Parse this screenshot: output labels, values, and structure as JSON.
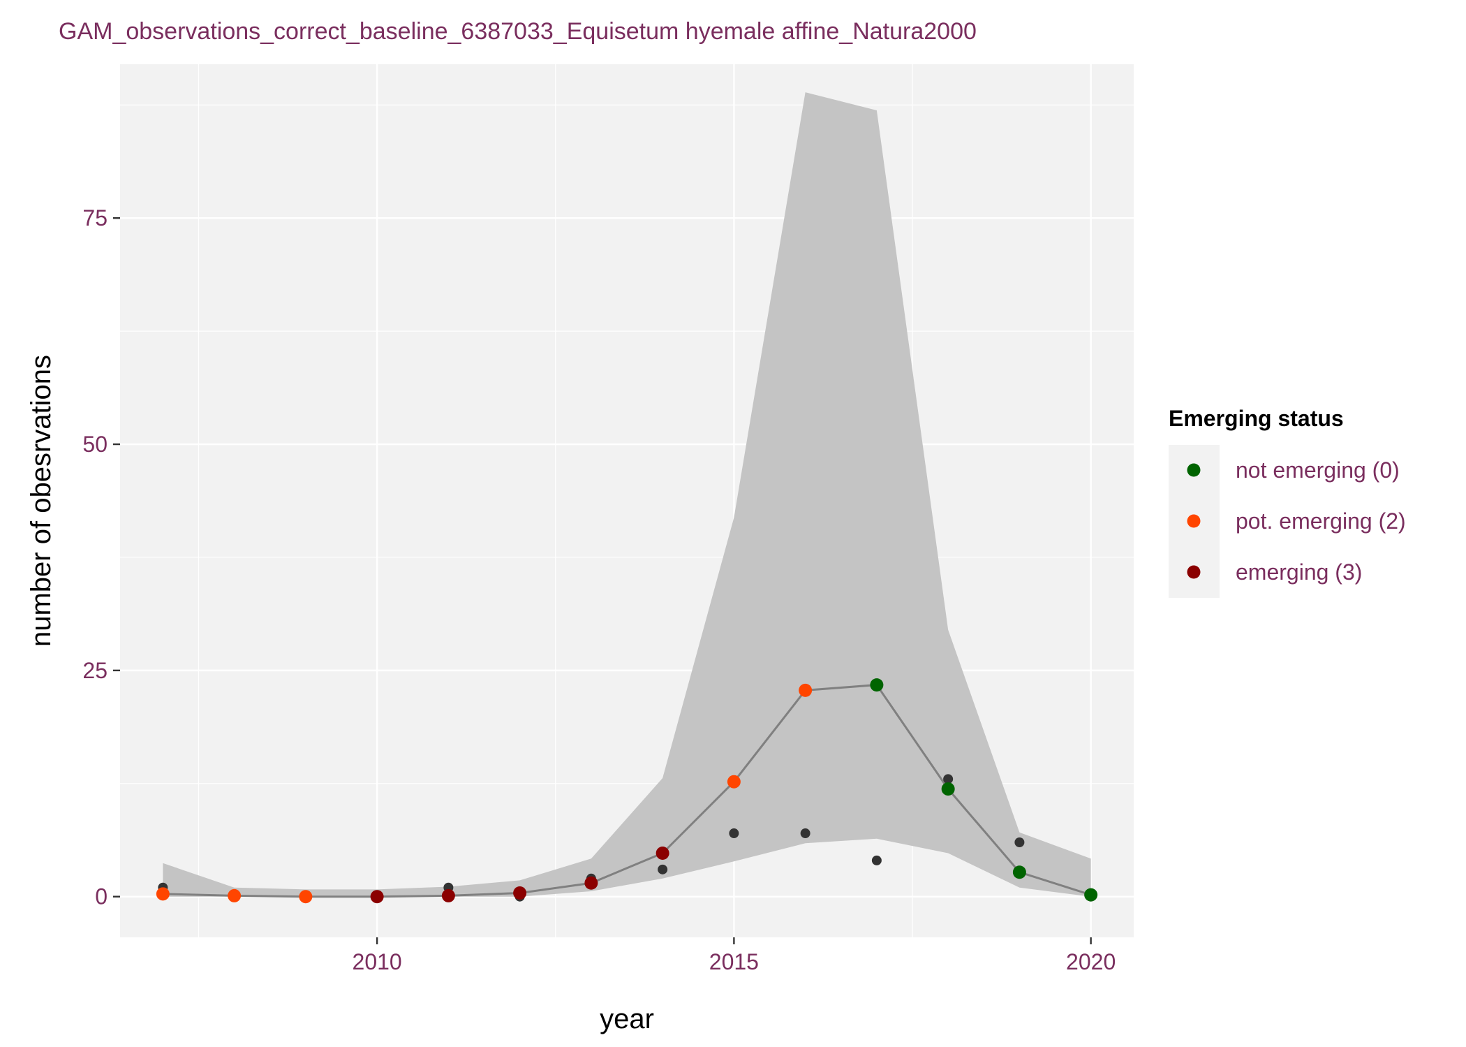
{
  "chart_data": {
    "type": "line",
    "title": "GAM_observations_correct_baseline_6387033_Equisetum hyemale affine_Natura2000",
    "xlabel": "year",
    "ylabel": "number of obesrvations",
    "xlim": [
      2006.4,
      2020.6
    ],
    "ylim": [
      -4.5,
      92
    ],
    "x_ticks": [
      2010,
      2015,
      2020
    ],
    "y_ticks": [
      0,
      25,
      50,
      75
    ],
    "grid": true,
    "legend_placement": "right",
    "legend": {
      "title": "Emerging status",
      "entries": [
        {
          "label": "not emerging (0)",
          "status": 0,
          "color": "#006400"
        },
        {
          "label": "pot. emerging (2)",
          "status": 2,
          "color": "#ff4500"
        },
        {
          "label": "emerging (3)",
          "status": 3,
          "color": "#8b0000"
        }
      ]
    },
    "colors": {
      "ribbon": "#c4c4c4",
      "line": "#808080",
      "observed_points": "#333333",
      "panel_background": "#f2f2f2",
      "grid": "#ffffff"
    },
    "years": [
      2007,
      2008,
      2009,
      2010,
      2011,
      2012,
      2013,
      2014,
      2015,
      2016,
      2017,
      2018,
      2019,
      2020
    ],
    "fit": [
      0.3,
      0.1,
      0.0,
      0.0,
      0.1,
      0.4,
      1.5,
      4.8,
      12.7,
      22.8,
      23.4,
      11.9,
      2.7,
      0.2
    ],
    "lower": [
      0.0,
      0.0,
      0.0,
      0.0,
      0.0,
      0.0,
      0.6,
      2.0,
      3.9,
      5.9,
      6.4,
      4.8,
      1.0,
      0.0
    ],
    "upper": [
      3.7,
      1.0,
      0.8,
      0.8,
      1.1,
      1.8,
      4.2,
      13.1,
      41.9,
      88.9,
      86.9,
      29.5,
      7.1,
      4.2
    ],
    "status": [
      2,
      2,
      2,
      3,
      3,
      3,
      3,
      3,
      2,
      2,
      0,
      0,
      0,
      0
    ],
    "observed": [
      1,
      0,
      0,
      0,
      1,
      0,
      2,
      3,
      7,
      7,
      4,
      13,
      6,
      0
    ]
  }
}
